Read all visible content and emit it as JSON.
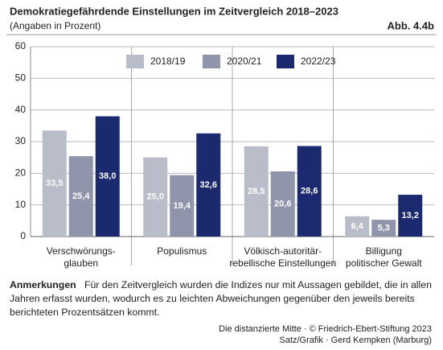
{
  "chart_data": {
    "type": "bar",
    "title": "Demokratiegefährdende Einstellungen im Zeitvergleich 2018–2023",
    "subtitle": "(Angaben in Prozent)",
    "figure_label": "Abb. 4.4b",
    "categories": [
      "Verschwörungs-\nglauben",
      "Populismus",
      "Völkisch-autoritär-\nrebellische Einstellungen",
      "Billigung\npolitischer Gewalt"
    ],
    "series": [
      {
        "name": "2018/19",
        "color": "#b9bdc9",
        "values": [
          33.5,
          25.0,
          28.5,
          6.4
        ],
        "value_labels": [
          "33,5",
          "25,0",
          "28,5",
          "6,4"
        ]
      },
      {
        "name": "2020/21",
        "color": "#9095ab",
        "values": [
          25.4,
          19.4,
          20.6,
          5.3
        ],
        "value_labels": [
          "25,4",
          "19,4",
          "20,6",
          "5,3"
        ]
      },
      {
        "name": "2022/23",
        "color": "#1b2a6e",
        "values": [
          38.0,
          32.6,
          28.6,
          13.2
        ],
        "value_labels": [
          "38,0",
          "32,6",
          "28,6",
          "13,2"
        ]
      }
    ],
    "ylim": [
      0,
      60
    ],
    "yticks": [
      0,
      10,
      20,
      30,
      40,
      50,
      60
    ],
    "grid": true
  },
  "note": {
    "label": "Anmerkungen",
    "text": "Für den Zeitvergleich wurden die Indizes nur mit Aussagen gebildet, die in allen Jahren erfasst wurden, wodurch es zu leichten Abweichungen gegenüber den jeweils bereits berichteten Prozentsätzen kommt."
  },
  "footer": [
    "Die distanzierte Mitte · © Friedrich-Ebert-Stiftung 2023",
    "Satz/Grafik · Gerd Kempken (Marburg)"
  ]
}
